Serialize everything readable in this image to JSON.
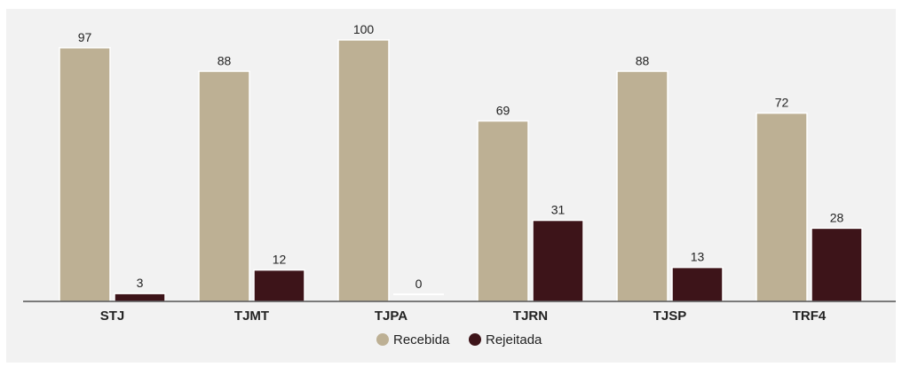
{
  "chart_data": {
    "type": "bar",
    "categories": [
      "STJ",
      "TJMT",
      "TJPA",
      "TJRN",
      "TJSP",
      "TRF4"
    ],
    "series": [
      {
        "name": "Recebida",
        "values": [
          97,
          88,
          100,
          69,
          88,
          72
        ]
      },
      {
        "name": "Rejeitada",
        "values": [
          3,
          12,
          0,
          31,
          13,
          28
        ]
      }
    ],
    "ylim": [
      0,
      100
    ],
    "grid": false,
    "legend_position": "bottom-center",
    "colors": {
      "Recebida": "#bdb094",
      "Rejeitada": "#3d1419",
      "baseline": "#333333",
      "panel": "#f2f2f2",
      "zero_marker": "#ffffff"
    }
  }
}
